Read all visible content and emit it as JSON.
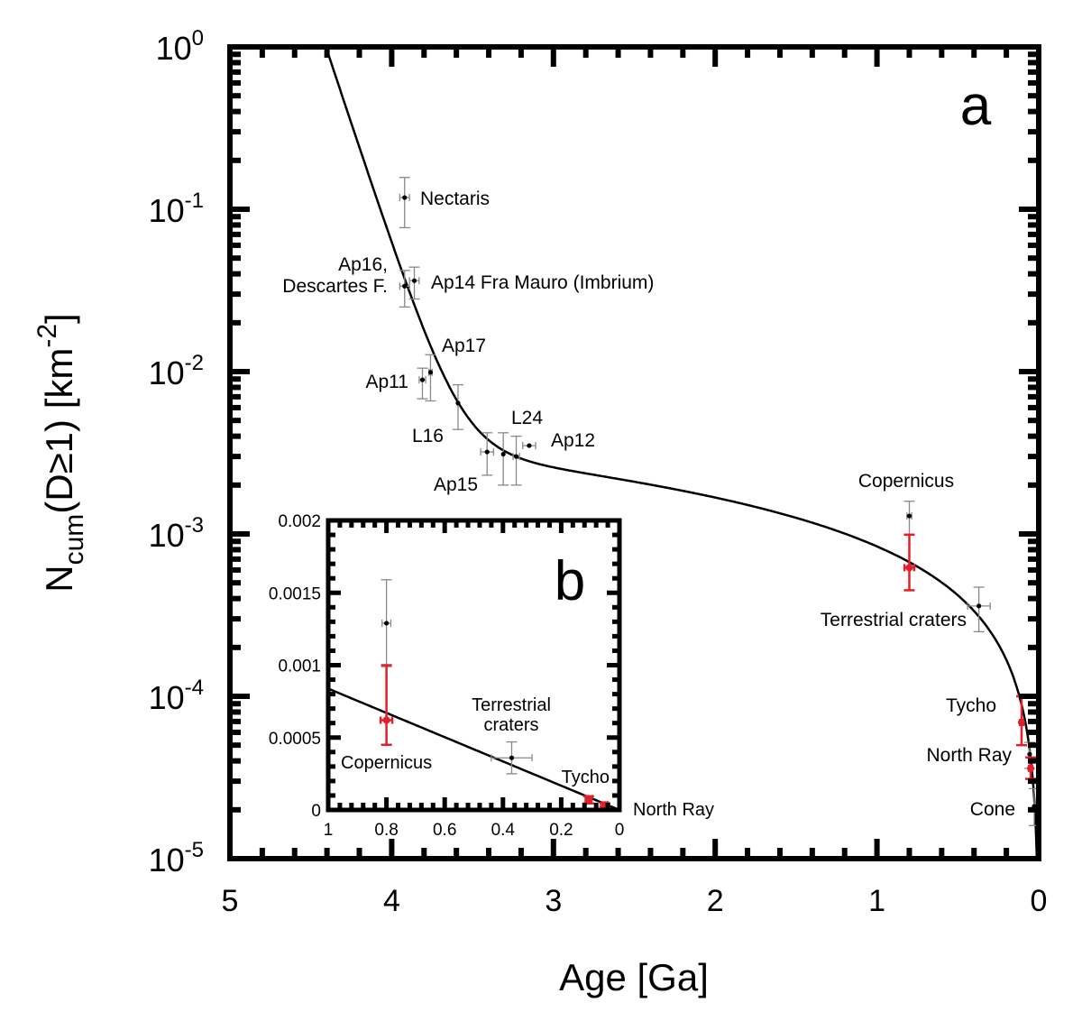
{
  "chart_data": [
    {
      "panel": "a",
      "type": "scatter",
      "xlabel": "Age [Ga]",
      "ylabel": {
        "main": "N",
        "sub": "cum",
        "rest": "(D≥1) [km",
        "sup": "-2",
        "close": "]"
      },
      "xlim": [
        5,
        0
      ],
      "ylim": [
        1e-05,
        1
      ],
      "yscale": "log",
      "x_ticks": [
        "5",
        "4",
        "3",
        "2",
        "1",
        "0"
      ],
      "y_ticks": [
        {
          "base": "10",
          "exp": "0"
        },
        {
          "base": "10",
          "exp": "-1"
        },
        {
          "base": "10",
          "exp": "-2"
        },
        {
          "base": "10",
          "exp": "-3"
        },
        {
          "base": "10",
          "exp": "-4"
        },
        {
          "base": "10",
          "exp": "-5"
        }
      ],
      "colors": {
        "radiometric": "#000000",
        "error_bars": "#888888",
        "red": "#e0202a",
        "curve": "#000000"
      },
      "curve": {
        "x": [
          0,
          0.05,
          0.1,
          0.2,
          0.4,
          0.6,
          0.8,
          1.0,
          1.5,
          2.0,
          2.5,
          3.0,
          3.2,
          3.4,
          3.6,
          3.8,
          4.0,
          4.2,
          4.4
        ],
        "y": [
          0,
          4.19e-05,
          8.38e-05,
          0.0001676,
          0.0003352,
          0.0005028,
          0.0006704,
          0.000838,
          0.001257,
          0.001676,
          0.002097,
          0.002572,
          0.002915,
          0.00378,
          0.00675,
          0.0181,
          0.0634,
          0.243,
          0.961
        ]
      },
      "points": [
        {
          "label": "Nectaris",
          "x": 3.92,
          "y": 0.118,
          "xerr": 0.03,
          "ylo": 0.077,
          "yhi": 0.157,
          "color": "black"
        },
        {
          "label": "Ap16,\nDescartes F.",
          "x": 3.92,
          "y": 0.0336,
          "xerr": 0.03,
          "ylo": 0.025,
          "yhi": 0.042,
          "color": "black"
        },
        {
          "label": "Ap14 Fra Mauro (Imbrium)",
          "x": 3.86,
          "y": 0.0363,
          "xerr": 0.03,
          "ylo": 0.028,
          "yhi": 0.044,
          "color": "black"
        },
        {
          "label": "Ap11",
          "x": 3.81,
          "y": 0.0089,
          "xerr": 0.02,
          "ylo": 0.0068,
          "yhi": 0.0105,
          "color": "black"
        },
        {
          "label": "Ap17",
          "x": 3.76,
          "y": 0.0099,
          "xerr": 0.01,
          "ylo": 0.0066,
          "yhi": 0.0127,
          "color": "black"
        },
        {
          "label": "L16",
          "x": 3.59,
          "y": 0.0064,
          "xerr": 0.0,
          "ylo": 0.0044,
          "yhi": 0.0083,
          "color": "black"
        },
        {
          "label": "Ap15",
          "x": 3.41,
          "y": 0.0032,
          "xerr": 0.04,
          "ylo": 0.0023,
          "yhi": 0.0042,
          "color": "black"
        },
        {
          "label": "",
          "x": 3.31,
          "y": 0.0031,
          "xerr": 0.0,
          "ylo": 0.002,
          "yhi": 0.0042,
          "color": "black"
        },
        {
          "label": "L24",
          "x": 3.23,
          "y": 0.003,
          "xerr": 0.02,
          "ylo": 0.002,
          "yhi": 0.004,
          "color": "black"
        },
        {
          "label": "Ap12",
          "x": 3.15,
          "y": 0.0035,
          "xerr": 0.04,
          "ylo": 0.0035,
          "yhi": 0.0035,
          "color": "black"
        },
        {
          "label": "Copernicus",
          "x": 0.8,
          "y": 0.00129,
          "xerr": 0.015,
          "ylo": 0.00099,
          "yhi": 0.00159,
          "color": "black"
        },
        {
          "label": "Terrestrial craters",
          "x": 0.8,
          "y": 0.00062,
          "xerr": 0.03,
          "ylo": 0.00045,
          "yhi": 0.00099,
          "color": "red"
        },
        {
          "label": "",
          "x": 0.37,
          "y": 0.00036,
          "xerr": 0.07,
          "ylo": 0.00025,
          "yhi": 0.00047,
          "color": "black"
        },
        {
          "label": "Tycho",
          "x": 0.106,
          "y": 6.9e-05,
          "xerr": 0.01,
          "ylo": 5e-05,
          "yhi": 0.0001,
          "color": "red"
        },
        {
          "label": "North Ray",
          "x": 0.056,
          "y": 4.4e-05,
          "xerr": 0.004,
          "ylo": 3.6e-05,
          "yhi": 5.2e-05,
          "color": "black"
        },
        {
          "label": "",
          "x": 0.05,
          "y": 3.6e-05,
          "xerr": 0.01,
          "ylo": 3.1e-05,
          "yhi": 4.2e-05,
          "color": "red"
        },
        {
          "label": "Cone",
          "x": 0.028,
          "y": 2.1e-05,
          "xerr": 0.002,
          "ylo": 1.6e-05,
          "yhi": 2.7e-05,
          "color": "black"
        }
      ]
    },
    {
      "panel": "b",
      "type": "scatter",
      "xlim": [
        1,
        0
      ],
      "ylim": [
        0,
        0.002
      ],
      "yscale": "linear",
      "x_ticks": [
        "1",
        "0.8",
        "0.6",
        "0.4",
        "0.2",
        "0"
      ],
      "y_ticks": [
        "0",
        "0.0005",
        "0.001",
        "0.0015",
        "0.002"
      ],
      "points": [
        {
          "label": "",
          "x": 0.8,
          "y": 0.00129,
          "xerr": 0.015,
          "ylo": 0.00099,
          "yhi": 0.00159,
          "color": "black"
        },
        {
          "label": "Copernicus",
          "x": 0.8,
          "y": 0.00062,
          "xerr": 0.02,
          "ylo": 0.00045,
          "yhi": 0.001,
          "color": "red"
        },
        {
          "label": "Terrestrial\ncraters",
          "x": 0.37,
          "y": 0.00036,
          "xerr": 0.07,
          "ylo": 0.00025,
          "yhi": 0.00047,
          "color": "black"
        },
        {
          "label": "Tycho",
          "x": 0.106,
          "y": 7e-05,
          "xerr": 0.01,
          "ylo": 4.5e-05,
          "yhi": 9.5e-05,
          "color": "red"
        },
        {
          "label": "North Ray",
          "x": 0.05,
          "y": 3.6e-05,
          "xerr": 0.01,
          "ylo": 2.5e-05,
          "yhi": 4.5e-05,
          "color": "red"
        }
      ]
    }
  ]
}
